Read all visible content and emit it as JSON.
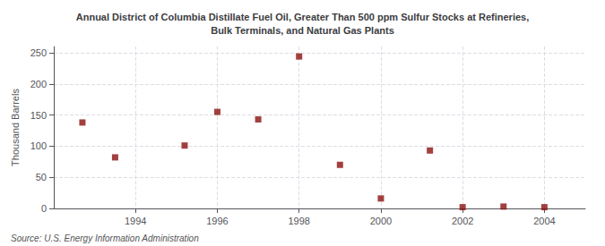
{
  "chart_data": {
    "type": "scatter",
    "title": "Annual District of Columbia Distillate Fuel Oil, Greater Than 500 ppm Sulfur Stocks at Refineries,\nBulk Terminals, and Natural Gas Plants",
    "ylabel": "Thousand Barrels",
    "annotation": "Source: U.S. Energy Information Administration",
    "x": [
      1992.7,
      1993.5,
      1995.2,
      1996.0,
      1997.0,
      1998.0,
      1999.0,
      2000.0,
      2001.2,
      2002.0,
      2003.0,
      2004.0
    ],
    "values": [
      138,
      82,
      101,
      155,
      143,
      244,
      70,
      16,
      93,
      2,
      3,
      2
    ],
    "color": "#8b1010",
    "marker": "square",
    "xlim": [
      1992.0,
      2005.0
    ],
    "ylim": [
      0,
      260
    ],
    "xticks": [
      1994,
      1996,
      1998,
      2000,
      2002,
      2004
    ],
    "yticks": [
      0,
      50,
      100,
      150,
      200,
      250
    ],
    "grid": true
  }
}
